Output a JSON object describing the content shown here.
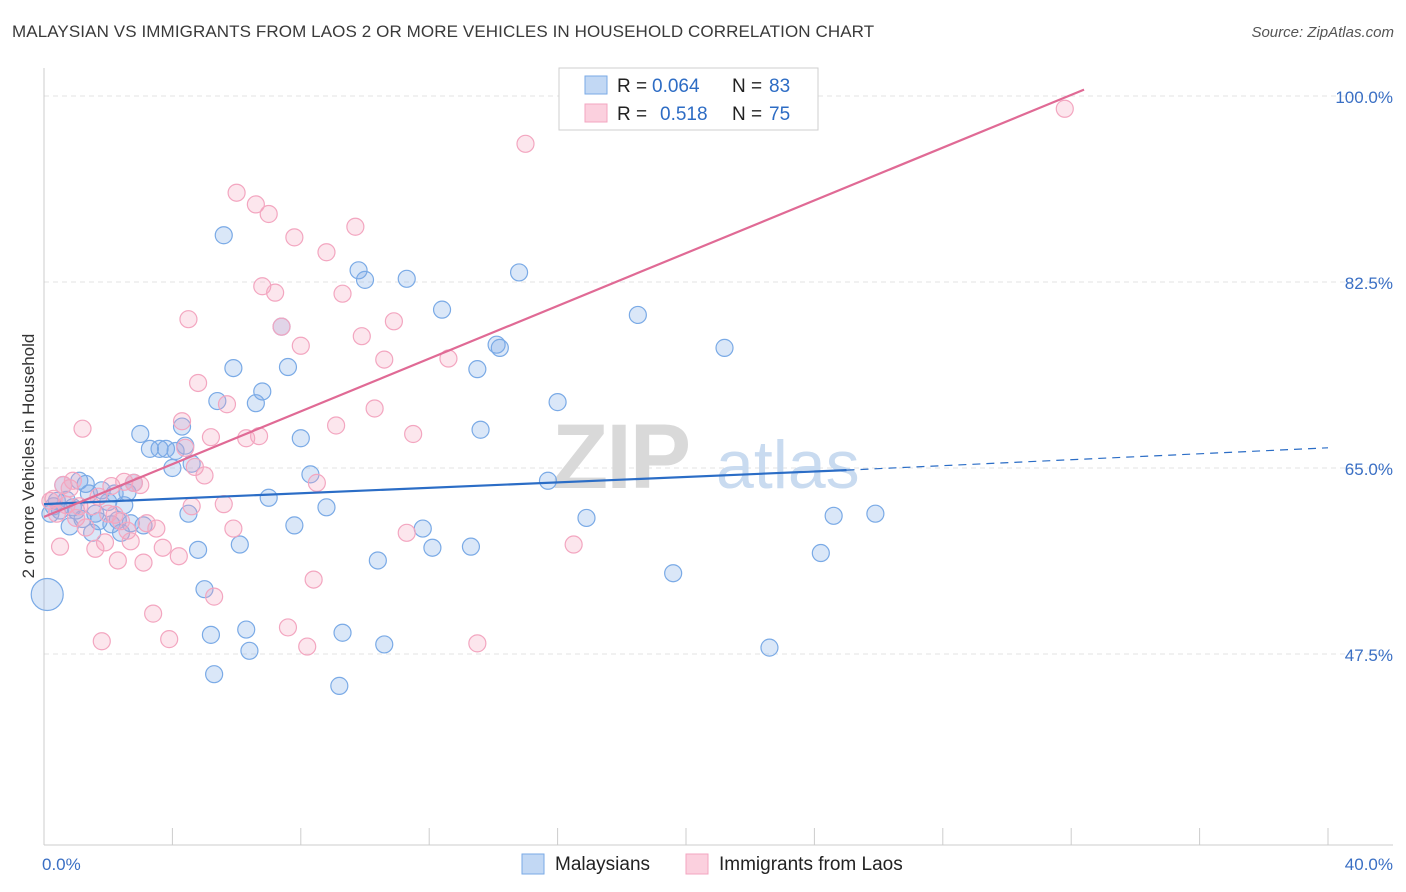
{
  "header": {
    "title": "MALAYSIAN VS IMMIGRANTS FROM LAOS 2 OR MORE VEHICLES IN HOUSEHOLD CORRELATION CHART",
    "source": "Source: ZipAtlas.com"
  },
  "watermark": {
    "zip": "ZIP",
    "atlas": "atlas"
  },
  "chart_data": {
    "type": "scatter",
    "title": "MALAYSIAN VS IMMIGRANTS FROM LAOS 2 OR MORE VEHICLES IN HOUSEHOLD CORRELATION CHART",
    "xlabel": "",
    "ylabel": "2 or more Vehicles in Household",
    "xlim": [
      0,
      40
    ],
    "ylim": [
      30,
      102
    ],
    "x_tick_labels": [
      "0.0%",
      "40.0%"
    ],
    "y_ticks": [
      47.5,
      65.0,
      82.5,
      100.0
    ],
    "y_tick_labels": [
      "47.5%",
      "65.0%",
      "82.5%",
      "100.0%"
    ],
    "grid": true,
    "legend_position": "bottom",
    "stats": [
      {
        "r_label": "R =",
        "r_value": "0.064",
        "n_label": "N =",
        "n_value": "83"
      },
      {
        "r_label": "R =",
        "r_value": "0.518",
        "n_label": "N =",
        "n_value": "75"
      }
    ],
    "series": [
      {
        "name": "Malaysians",
        "color": "#7aaae6",
        "line_color": "#2b6dc6",
        "trend": {
          "x0": 0,
          "y0": 61.6,
          "x1": 25.0,
          "y1": 64.8,
          "dash_to_x": 40,
          "dash_to_y": 66.9
        },
        "points": [
          [
            0.2,
            60.7
          ],
          [
            0.3,
            61.4
          ],
          [
            0.4,
            61.9
          ],
          [
            0.5,
            61.0
          ],
          [
            0.6,
            63.4
          ],
          [
            0.7,
            62.0
          ],
          [
            0.8,
            59.5
          ],
          [
            0.9,
            61.3
          ],
          [
            1.0,
            61.0
          ],
          [
            1.1,
            63.8
          ],
          [
            1.2,
            60.2
          ],
          [
            1.3,
            63.5
          ],
          [
            1.4,
            62.6
          ],
          [
            1.5,
            58.9
          ],
          [
            1.6,
            60.7
          ],
          [
            1.7,
            60.0
          ],
          [
            1.8,
            62.9
          ],
          [
            2.0,
            61.8
          ],
          [
            2.1,
            59.7
          ],
          [
            2.2,
            62.6
          ],
          [
            2.3,
            60.1
          ],
          [
            2.4,
            58.9
          ],
          [
            2.5,
            61.5
          ],
          [
            2.6,
            62.7
          ],
          [
            2.7,
            59.8
          ],
          [
            2.8,
            63.6
          ],
          [
            3.0,
            68.2
          ],
          [
            3.1,
            59.6
          ],
          [
            3.3,
            66.8
          ],
          [
            3.6,
            66.8
          ],
          [
            3.8,
            66.8
          ],
          [
            4.0,
            65.0
          ],
          [
            4.1,
            66.6
          ],
          [
            4.3,
            68.9
          ],
          [
            4.4,
            67.1
          ],
          [
            4.5,
            60.7
          ],
          [
            4.6,
            65.4
          ],
          [
            4.8,
            57.3
          ],
          [
            5.0,
            53.6
          ],
          [
            5.2,
            49.3
          ],
          [
            5.3,
            45.6
          ],
          [
            5.4,
            71.3
          ],
          [
            5.6,
            86.9
          ],
          [
            5.9,
            74.4
          ],
          [
            6.1,
            57.8
          ],
          [
            6.3,
            49.8
          ],
          [
            6.4,
            47.8
          ],
          [
            6.6,
            71.1
          ],
          [
            6.8,
            72.2
          ],
          [
            7.0,
            62.2
          ],
          [
            7.4,
            78.3
          ],
          [
            7.6,
            74.5
          ],
          [
            7.8,
            59.6
          ],
          [
            8.0,
            67.8
          ],
          [
            8.3,
            64.4
          ],
          [
            8.8,
            61.3
          ],
          [
            9.2,
            44.5
          ],
          [
            9.3,
            49.5
          ],
          [
            9.8,
            83.6
          ],
          [
            10.0,
            82.7
          ],
          [
            10.4,
            56.3
          ],
          [
            10.6,
            48.4
          ],
          [
            11.3,
            82.8
          ],
          [
            11.8,
            59.3
          ],
          [
            12.1,
            57.5
          ],
          [
            12.4,
            79.9
          ],
          [
            13.3,
            57.6
          ],
          [
            13.5,
            74.3
          ],
          [
            13.6,
            68.6
          ],
          [
            14.1,
            76.6
          ],
          [
            14.2,
            76.3
          ],
          [
            14.8,
            83.4
          ],
          [
            15.7,
            63.8
          ],
          [
            16.0,
            71.2
          ],
          [
            16.9,
            60.3
          ],
          [
            18.5,
            79.4
          ],
          [
            19.6,
            55.1
          ],
          [
            21.2,
            76.3
          ],
          [
            22.6,
            48.1
          ],
          [
            24.2,
            57.0
          ],
          [
            25.9,
            60.7
          ],
          [
            24.6,
            60.5
          ],
          [
            0.1,
            53.1
          ]
        ]
      },
      {
        "name": "Immigrants from Laos",
        "color": "#f3a6c0",
        "line_color": "#e06a95",
        "trend": {
          "x0": 0,
          "y0": 60.4,
          "x1": 32.4,
          "y1": 100.6
        },
        "points": [
          [
            0.2,
            61.9
          ],
          [
            0.3,
            62.1
          ],
          [
            0.4,
            60.7
          ],
          [
            0.5,
            57.6
          ],
          [
            0.6,
            63.4
          ],
          [
            0.7,
            61.5
          ],
          [
            0.8,
            63.1
          ],
          [
            0.9,
            63.8
          ],
          [
            1.0,
            60.3
          ],
          [
            1.1,
            61.4
          ],
          [
            1.2,
            68.7
          ],
          [
            1.3,
            59.4
          ],
          [
            1.5,
            61.4
          ],
          [
            1.6,
            57.4
          ],
          [
            1.7,
            62.3
          ],
          [
            1.8,
            48.7
          ],
          [
            1.9,
            58.0
          ],
          [
            2.0,
            60.7
          ],
          [
            2.1,
            63.3
          ],
          [
            2.2,
            60.6
          ],
          [
            2.3,
            56.3
          ],
          [
            2.4,
            60.0
          ],
          [
            2.5,
            63.7
          ],
          [
            2.6,
            59.1
          ],
          [
            2.7,
            58.1
          ],
          [
            2.8,
            63.6
          ],
          [
            3.0,
            63.4
          ],
          [
            3.1,
            56.1
          ],
          [
            3.2,
            59.8
          ],
          [
            3.4,
            51.3
          ],
          [
            3.5,
            59.3
          ],
          [
            3.7,
            57.5
          ],
          [
            3.9,
            48.9
          ],
          [
            4.2,
            56.7
          ],
          [
            4.3,
            69.4
          ],
          [
            4.4,
            66.9
          ],
          [
            4.5,
            79.0
          ],
          [
            4.6,
            61.4
          ],
          [
            4.7,
            65.1
          ],
          [
            4.8,
            73.0
          ],
          [
            5.0,
            64.3
          ],
          [
            5.2,
            67.9
          ],
          [
            5.3,
            52.9
          ],
          [
            5.6,
            61.6
          ],
          [
            5.7,
            71.0
          ],
          [
            5.9,
            59.3
          ],
          [
            6.0,
            90.9
          ],
          [
            6.3,
            67.8
          ],
          [
            6.6,
            89.8
          ],
          [
            6.7,
            68.0
          ],
          [
            6.8,
            82.1
          ],
          [
            7.0,
            88.9
          ],
          [
            7.2,
            81.5
          ],
          [
            7.4,
            78.3
          ],
          [
            7.6,
            50.0
          ],
          [
            7.8,
            86.7
          ],
          [
            8.0,
            76.5
          ],
          [
            8.2,
            48.2
          ],
          [
            8.4,
            54.5
          ],
          [
            8.5,
            63.6
          ],
          [
            8.8,
            85.3
          ],
          [
            9.1,
            69.0
          ],
          [
            9.3,
            81.4
          ],
          [
            9.7,
            87.7
          ],
          [
            9.9,
            77.4
          ],
          [
            10.3,
            70.6
          ],
          [
            10.6,
            75.2
          ],
          [
            10.9,
            78.8
          ],
          [
            11.3,
            58.9
          ],
          [
            11.5,
            68.2
          ],
          [
            12.6,
            75.3
          ],
          [
            13.5,
            48.5
          ],
          [
            15.0,
            95.5
          ],
          [
            16.5,
            57.8
          ],
          [
            31.8,
            98.8
          ]
        ]
      }
    ]
  },
  "legend": {
    "items": [
      {
        "label": "Malaysians",
        "color": "#7aaae6"
      },
      {
        "label": "Immigrants from Laos",
        "color": "#f3a6c0"
      }
    ]
  }
}
